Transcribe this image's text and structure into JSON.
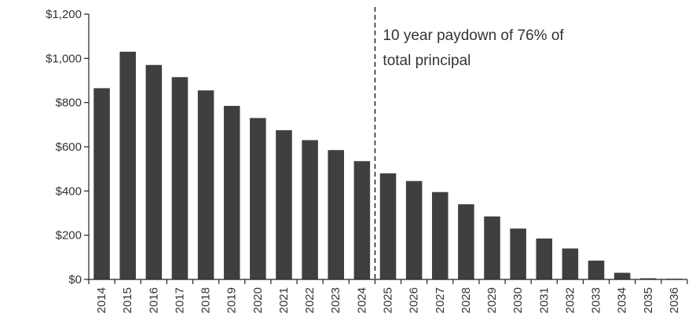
{
  "chart_data": {
    "type": "bar",
    "title": "",
    "xlabel": "",
    "ylabel": "",
    "ylim": [
      0,
      1200
    ],
    "y_ticks": [
      0,
      200,
      400,
      600,
      800,
      1000,
      1200
    ],
    "y_tick_labels": [
      "$0",
      "$200",
      "$400",
      "$600",
      "$800",
      "$1,000",
      "$1,200"
    ],
    "categories": [
      "2014",
      "2015",
      "2016",
      "2017",
      "2018",
      "2019",
      "2020",
      "2021",
      "2022",
      "2023",
      "2024",
      "2025",
      "2026",
      "2027",
      "2028",
      "2029",
      "2030",
      "2031",
      "2032",
      "2033",
      "2034",
      "2035",
      "2036"
    ],
    "values": [
      865,
      1030,
      970,
      915,
      855,
      785,
      730,
      675,
      630,
      585,
      535,
      480,
      445,
      395,
      340,
      285,
      230,
      185,
      140,
      85,
      30,
      5,
      3
    ],
    "bar_color": "#3f3f3f",
    "grid": false,
    "annotation": {
      "text_lines": [
        "10 year paydown of 76% of",
        "total principal"
      ],
      "divider_between": [
        "2024",
        "2025"
      ]
    }
  }
}
